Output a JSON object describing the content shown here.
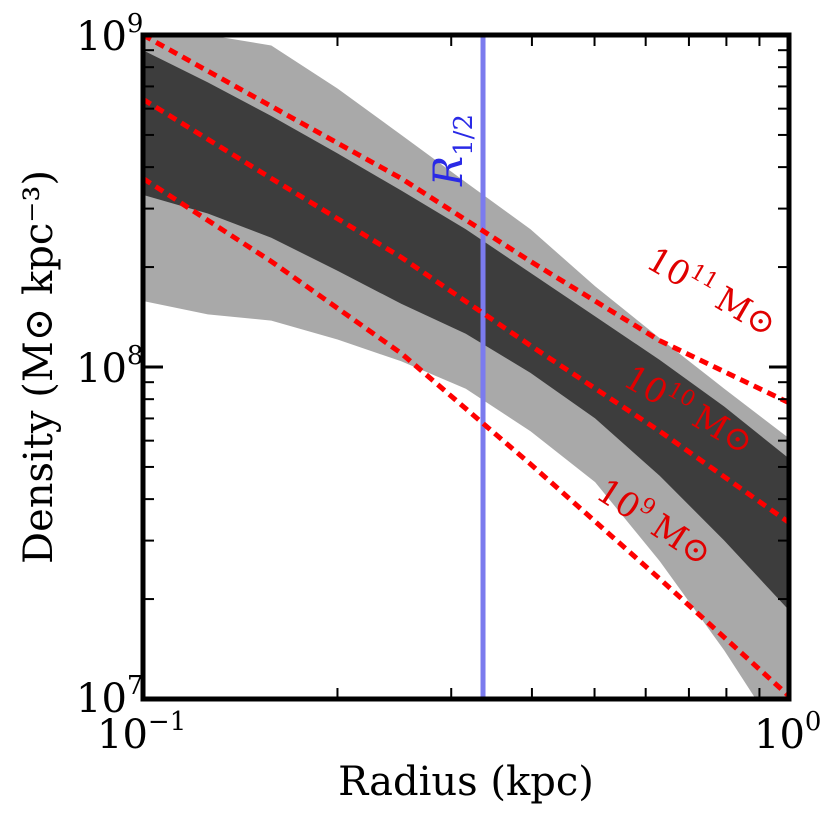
{
  "chart_data": {
    "type": "area",
    "title": "",
    "xlabel": "Radius (kpc)",
    "ylabel": "Density (M⊙ kpc⁻³)",
    "xscale": "log",
    "yscale": "log",
    "xlim": [
      0.1,
      1.0
    ],
    "ylim": [
      10000000.0,
      1000000000.0
    ],
    "x_tick_labels": [
      {
        "value": 0.1,
        "base": "10",
        "exp": "−1"
      },
      {
        "value": 1.0,
        "base": "10",
        "exp": "0"
      }
    ],
    "y_tick_labels": [
      {
        "value": 10000000.0,
        "base": "10",
        "exp": "7"
      },
      {
        "value": 100000000.0,
        "base": "10",
        "exp": "8"
      },
      {
        "value": 1000000000.0,
        "base": "10",
        "exp": "9"
      }
    ],
    "bands": [
      {
        "name": "outer-band",
        "color": "#a9a9a9",
        "x": [
          0.1,
          0.126,
          0.158,
          0.2,
          0.251,
          0.316,
          0.398,
          0.501,
          0.631,
          0.794,
          1.0
        ],
        "upper": [
          1000000000.0,
          1000000000.0,
          930000000.0,
          690000000.0,
          500000000.0,
          360000000.0,
          260000000.0,
          175000000.0,
          122000000.0,
          86000000.0,
          61000000.0
        ],
        "lower": [
          158000000.0,
          144000000.0,
          138000000.0,
          121000000.0,
          104000000.0,
          86000000.0,
          64000000.0,
          45000000.0,
          26000000.0,
          14000000.0,
          7000000.0
        ]
      },
      {
        "name": "inner-band",
        "color": "#3d3d3d",
        "x": [
          0.1,
          0.126,
          0.158,
          0.2,
          0.251,
          0.316,
          0.398,
          0.501,
          0.631,
          0.794,
          1.0
        ],
        "upper": [
          900000000.0,
          720000000.0,
          570000000.0,
          440000000.0,
          340000000.0,
          260000000.0,
          192000000.0,
          142000000.0,
          105000000.0,
          76000000.0,
          53000000.0
        ],
        "lower": [
          330000000.0,
          290000000.0,
          245000000.0,
          195000000.0,
          155000000.0,
          126000000.0,
          96000000.0,
          70000000.0,
          47000000.0,
          30000000.0,
          18500000.0
        ]
      }
    ],
    "series": [
      {
        "name": "10^11 Msun",
        "label_base": "10",
        "label_exp": "11",
        "label_unit": "M⊙",
        "color": "#ff0000",
        "style": "dashed",
        "x": [
          0.1,
          0.158,
          0.251,
          0.398,
          0.631,
          1.0
        ],
        "values": [
          1000000000.0,
          610000000.0,
          370000000.0,
          208000000.0,
          120000000.0,
          78000000.0
        ]
      },
      {
        "name": "10^10 Msun",
        "label_base": "10",
        "label_exp": "10",
        "label_unit": "M⊙",
        "color": "#ff0000",
        "style": "dashed",
        "x": [
          0.1,
          0.158,
          0.251,
          0.398,
          0.631,
          1.0
        ],
        "values": [
          640000000.0,
          370000000.0,
          214000000.0,
          116000000.0,
          64000000.0,
          34000000.0
        ]
      },
      {
        "name": "10^9 Msun",
        "label_base": "10",
        "label_exp": "9",
        "label_unit": "M⊙",
        "color": "#ff0000",
        "style": "dashed",
        "x": [
          0.1,
          0.158,
          0.251,
          0.398,
          0.631,
          1.0
        ],
        "values": [
          370000000.0,
          208000000.0,
          110000000.0,
          51000000.0,
          23000000.0,
          10200000.0
        ]
      }
    ],
    "vertical_line": {
      "name": "R_1/2",
      "label_main": "R",
      "label_sub": "1/2",
      "x": 0.336,
      "color": "#7b7bee"
    }
  }
}
